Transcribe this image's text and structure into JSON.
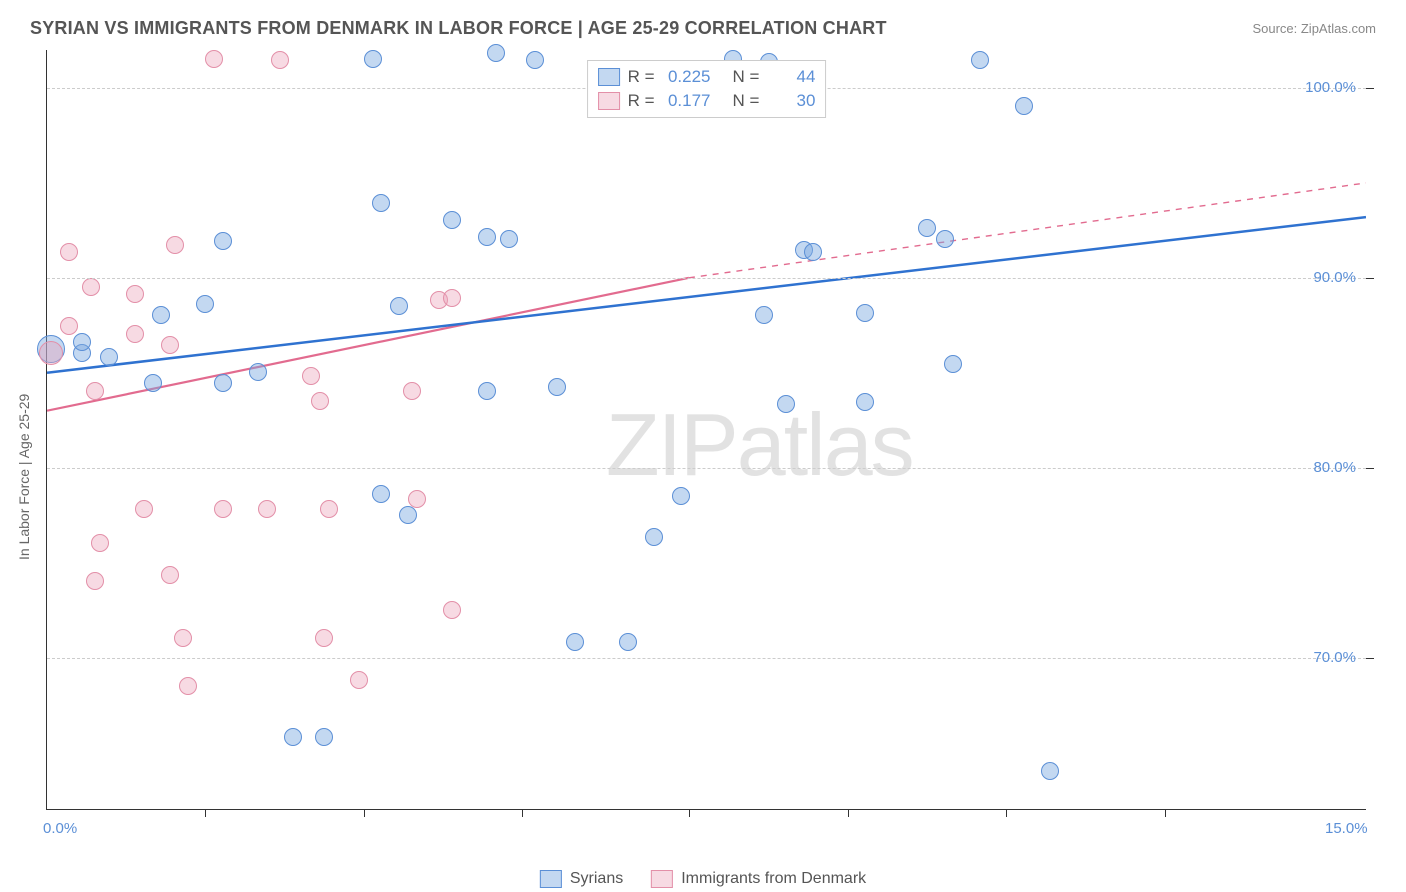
{
  "title": "SYRIAN VS IMMIGRANTS FROM DENMARK IN LABOR FORCE | AGE 25-29 CORRELATION CHART",
  "source": "Source: ZipAtlas.com",
  "watermark_a": "ZIP",
  "watermark_b": "atlas",
  "chart": {
    "type": "scatter",
    "xlim": [
      0,
      15
    ],
    "ylim": [
      62,
      102
    ],
    "x_ticks_major": [
      0,
      15
    ],
    "x_ticks_minor": [
      1.8,
      3.6,
      5.4,
      7.3,
      9.1,
      10.9,
      12.7
    ],
    "x_tick_labels": {
      "0": "0.0%",
      "15": "15.0%"
    },
    "y_ticks": [
      70,
      80,
      90,
      100
    ],
    "y_tick_labels": {
      "70": "70.0%",
      "80": "80.0%",
      "90": "90.0%",
      "100": "100.0%"
    },
    "y_axis_label": "In Labor Force | Age 25-29",
    "grid_color": "#cccccc",
    "background_color": "#ffffff",
    "marker_size": 18,
    "series": [
      {
        "name": "Syrians",
        "color_fill": "rgba(121,168,224,0.45)",
        "color_stroke": "#5b8fd6",
        "R": "0.225",
        "N": "44",
        "trend": {
          "x1": 0.0,
          "y1": 85.0,
          "x2": 15.0,
          "y2": 93.2,
          "dash": false,
          "color": "#2f72d0",
          "width": 2.5
        },
        "points": [
          {
            "x": 0.05,
            "y": 86.2,
            "s": 28
          },
          {
            "x": 0.4,
            "y": 86.0
          },
          {
            "x": 0.4,
            "y": 86.6
          },
          {
            "x": 0.7,
            "y": 85.8
          },
          {
            "x": 1.3,
            "y": 88.0
          },
          {
            "x": 1.8,
            "y": 88.6
          },
          {
            "x": 2.0,
            "y": 91.9
          },
          {
            "x": 1.2,
            "y": 84.4
          },
          {
            "x": 2.0,
            "y": 84.4
          },
          {
            "x": 2.4,
            "y": 85.0
          },
          {
            "x": 2.8,
            "y": 65.8
          },
          {
            "x": 3.15,
            "y": 65.8
          },
          {
            "x": 3.7,
            "y": 101.5
          },
          {
            "x": 3.8,
            "y": 93.9
          },
          {
            "x": 4.6,
            "y": 93.0
          },
          {
            "x": 3.8,
            "y": 78.6
          },
          {
            "x": 4.1,
            "y": 77.5
          },
          {
            "x": 4.0,
            "y": 88.5
          },
          {
            "x": 5.0,
            "y": 92.1
          },
          {
            "x": 5.25,
            "y": 92.0
          },
          {
            "x": 5.1,
            "y": 101.8
          },
          {
            "x": 5.55,
            "y": 101.4
          },
          {
            "x": 5.0,
            "y": 84.0
          },
          {
            "x": 5.8,
            "y": 84.2
          },
          {
            "x": 6.0,
            "y": 70.8
          },
          {
            "x": 6.6,
            "y": 70.8
          },
          {
            "x": 6.9,
            "y": 76.3
          },
          {
            "x": 7.2,
            "y": 78.5
          },
          {
            "x": 7.8,
            "y": 101.5
          },
          {
            "x": 8.2,
            "y": 101.3
          },
          {
            "x": 8.15,
            "y": 88.0
          },
          {
            "x": 8.6,
            "y": 91.4
          },
          {
            "x": 8.7,
            "y": 91.3
          },
          {
            "x": 8.4,
            "y": 83.3
          },
          {
            "x": 9.3,
            "y": 88.1
          },
          {
            "x": 9.3,
            "y": 83.4
          },
          {
            "x": 10.0,
            "y": 92.6
          },
          {
            "x": 10.2,
            "y": 92.0
          },
          {
            "x": 10.6,
            "y": 101.4
          },
          {
            "x": 10.3,
            "y": 85.4
          },
          {
            "x": 11.1,
            "y": 99.0
          },
          {
            "x": 11.4,
            "y": 64.0
          }
        ]
      },
      {
        "name": "Immigrants from Denmark",
        "color_fill": "rgba(236,163,184,0.40)",
        "color_stroke": "#e38fa8",
        "R": "0.177",
        "N": "30",
        "trend_solid": {
          "x1": 0.0,
          "y1": 83.0,
          "x2": 7.3,
          "y2": 90.0,
          "dash": false,
          "color": "#e26b8f",
          "width": 2.2
        },
        "trend_dash": {
          "x1": 7.3,
          "y1": 90.0,
          "x2": 15.0,
          "y2": 95.0,
          "dash": true,
          "color": "#e26b8f",
          "width": 1.4
        },
        "points": [
          {
            "x": 0.05,
            "y": 86.0,
            "s": 24
          },
          {
            "x": 0.25,
            "y": 91.3
          },
          {
            "x": 0.25,
            "y": 87.4
          },
          {
            "x": 0.5,
            "y": 89.5
          },
          {
            "x": 0.55,
            "y": 84.0
          },
          {
            "x": 0.6,
            "y": 76.0
          },
          {
            "x": 0.55,
            "y": 74.0
          },
          {
            "x": 1.0,
            "y": 89.1
          },
          {
            "x": 1.0,
            "y": 87.0
          },
          {
            "x": 1.1,
            "y": 77.8
          },
          {
            "x": 1.45,
            "y": 91.7
          },
          {
            "x": 1.4,
            "y": 86.4
          },
          {
            "x": 1.4,
            "y": 74.3
          },
          {
            "x": 1.55,
            "y": 71.0
          },
          {
            "x": 1.6,
            "y": 68.5
          },
          {
            "x": 1.9,
            "y": 101.5
          },
          {
            "x": 2.0,
            "y": 77.8
          },
          {
            "x": 2.5,
            "y": 77.8
          },
          {
            "x": 2.65,
            "y": 101.4
          },
          {
            "x": 3.0,
            "y": 84.8
          },
          {
            "x": 3.2,
            "y": 77.8
          },
          {
            "x": 3.15,
            "y": 71.0
          },
          {
            "x": 3.1,
            "y": 83.5
          },
          {
            "x": 3.55,
            "y": 68.8
          },
          {
            "x": 4.2,
            "y": 78.3
          },
          {
            "x": 4.15,
            "y": 84.0
          },
          {
            "x": 4.6,
            "y": 72.5
          },
          {
            "x": 4.45,
            "y": 88.8
          },
          {
            "x": 4.6,
            "y": 88.9
          }
        ]
      }
    ],
    "legend_top": {
      "rows": [
        {
          "swatch": "b",
          "r_label": "R =",
          "r_val": "0.225",
          "n_label": "N =",
          "n_val": "44"
        },
        {
          "swatch": "p",
          "r_label": "R =",
          "r_val": "0.177",
          "n_label": "N =",
          "n_val": "30"
        }
      ]
    },
    "legend_bottom": [
      {
        "swatch": "b",
        "label": "Syrians"
      },
      {
        "swatch": "p",
        "label": "Immigrants from Denmark"
      }
    ]
  }
}
